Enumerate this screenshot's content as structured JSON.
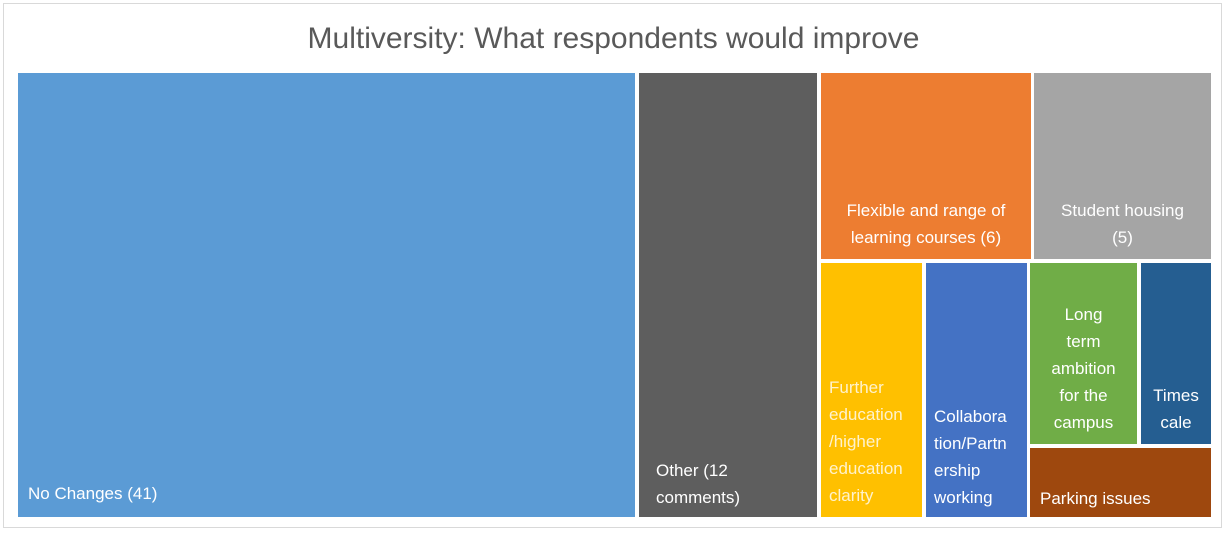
{
  "chart_data": {
    "type": "treemap",
    "title": "Multiversity: What respondents would improve",
    "items": [
      {
        "name": "No Changes",
        "value": 41,
        "label": "No Changes (41)",
        "color": "#5b9bd5",
        "text_color": "#ffffff"
      },
      {
        "name": "Other",
        "value": 12,
        "label": "Other (12\ncomments)",
        "color": "#5e5e5e",
        "text_color": "#ffffff"
      },
      {
        "name": "Flexible and range of learning courses",
        "value": 6,
        "label": "Flexible and range of\nlearning courses (6)",
        "color": "#ed7d31",
        "text_color": "#ffffff"
      },
      {
        "name": "Student housing",
        "value": 5,
        "label": "Student housing\n(5)",
        "color": "#a5a5a5",
        "text_color": "#ffffff"
      },
      {
        "name": "Further education/higher education clarity",
        "value": null,
        "label": "Further\neducation\n/higher\neducation\nclarity",
        "color": "#ffc000",
        "text_color": "#fff2cc"
      },
      {
        "name": "Collaboration/Partnership working",
        "value": null,
        "label": "Collabora\ntion/Partn\nership\nworking",
        "color": "#4472c4",
        "text_color": "#ffffff"
      },
      {
        "name": "Long term ambition for the campus",
        "value": null,
        "label": "Long\nterm\nambition\nfor the\ncampus",
        "color": "#70ad47",
        "text_color": "#ffffff"
      },
      {
        "name": "Timescale",
        "value": null,
        "label": "Times\ncale",
        "color": "#255e91",
        "text_color": "#ffffff"
      },
      {
        "name": "Parking issues",
        "value": null,
        "label": "Parking issues",
        "color": "#9e480e",
        "text_color": "#ffffff"
      }
    ]
  }
}
